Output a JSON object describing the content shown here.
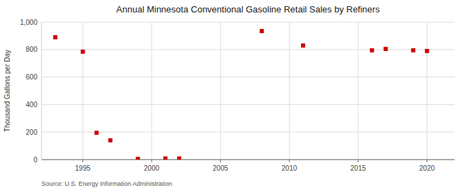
{
  "chart_data": {
    "type": "scatter",
    "title": "Annual Minnesota Conventional Gasoline Retail Sales by Refiners",
    "ylabel": "Thousand Gallons per Day",
    "source": "Source: U.S. Energy Information Administration",
    "x": [
      1993,
      1995,
      1996,
      1997,
      1999,
      2001,
      2002,
      2008,
      2011,
      2016,
      2017,
      2019,
      2020
    ],
    "values": [
      890,
      785,
      195,
      140,
      5,
      8,
      8,
      935,
      830,
      795,
      805,
      795,
      790
    ],
    "color": "#cc0000",
    "marker": "square",
    "xlim": [
      1992,
      2022
    ],
    "xticks": [
      1995,
      2000,
      2005,
      2010,
      2015,
      2020
    ],
    "ylim": [
      0,
      1000
    ],
    "yticks": [
      0,
      200,
      400,
      600,
      800,
      {
        "value": 1000,
        "label": "1,000"
      }
    ],
    "grid": true
  }
}
